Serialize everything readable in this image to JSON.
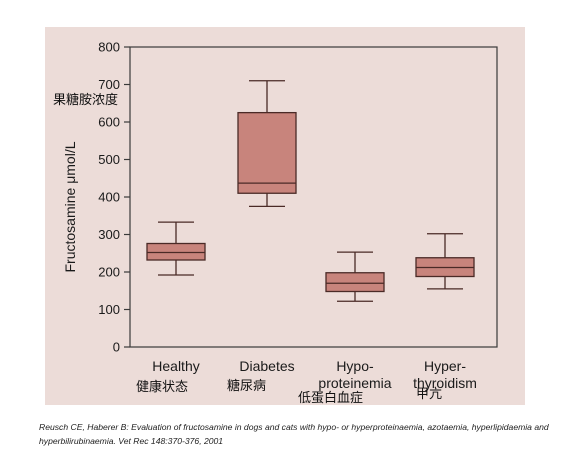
{
  "chart_data": {
    "type": "box",
    "ylabel": "Fructosamine μmol/L",
    "ylim": [
      0,
      800
    ],
    "yticks": [
      0,
      100,
      200,
      300,
      400,
      500,
      600,
      700,
      800
    ],
    "grid": false,
    "box_color": "#c8847c",
    "box_stroke": "#4a2a26",
    "groups": [
      {
        "label": "Healthy",
        "whisker_low": 192,
        "q1": 232,
        "median": 252,
        "q3": 276,
        "whisker_high": 333
      },
      {
        "label": "Diabetes",
        "whisker_low": 375,
        "q1": 410,
        "median": 437,
        "q3": 625,
        "whisker_high": 710
      },
      {
        "label": "Hypo-\nproteinemia",
        "whisker_low": 122,
        "q1": 148,
        "median": 170,
        "q3": 198,
        "whisker_high": 253
      },
      {
        "label": "Hyper-\nthyroidism",
        "whisker_low": 155,
        "q1": 188,
        "median": 212,
        "q3": 238,
        "whisker_high": 302
      }
    ]
  },
  "annotations": {
    "ylabel_cn": "果糖胺浓度",
    "group_cn": [
      "健康状态",
      "糖尿病",
      "低蛋白血症",
      "甲亢"
    ]
  },
  "citation": "Reusch CE, Haberer B: Evaluation of fructosamine in dogs and cats with hypo- or hyperproteinaemia, azotaemia, hyperlipidaemia and hyperbilirubinaemia. Vet Rec 148:370-376, 2001"
}
